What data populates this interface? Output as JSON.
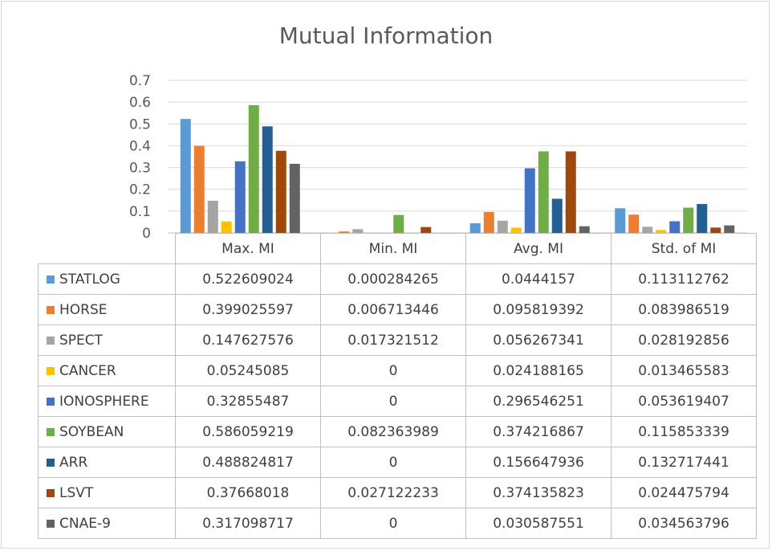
{
  "chart_data": {
    "type": "bar",
    "title": "Mutual Information",
    "categories": [
      "Max. MI",
      "Min. MI",
      "Avg. MI",
      "Std. of MI"
    ],
    "ylim": [
      0,
      0.7
    ],
    "yticks": [
      "0",
      "0.1",
      "0.2",
      "0.3",
      "0.4",
      "0.5",
      "0.6",
      "0.7"
    ],
    "grid": true,
    "legend_placement": "data table below plot",
    "series": [
      {
        "name": "STATLOG",
        "color": "#5b9bd5",
        "values": [
          0.522609024,
          0.000284265,
          0.0444157,
          0.113112762
        ],
        "labels": [
          "0.522609024",
          "0.000284265",
          "0.0444157",
          "0.113112762"
        ]
      },
      {
        "name": "HORSE",
        "color": "#ed7d31",
        "values": [
          0.399025597,
          0.006713446,
          0.095819392,
          0.083986519
        ],
        "labels": [
          "0.399025597",
          "0.006713446",
          "0.095819392",
          "0.083986519"
        ]
      },
      {
        "name": "SPECT",
        "color": "#a5a5a5",
        "values": [
          0.147627576,
          0.017321512,
          0.056267341,
          0.028192856
        ],
        "labels": [
          "0.147627576",
          "0.017321512",
          "0.056267341",
          "0.028192856"
        ]
      },
      {
        "name": "CANCER",
        "color": "#ffc000",
        "values": [
          0.05245085,
          0,
          0.024188165,
          0.013465583
        ],
        "labels": [
          "0.05245085",
          "0",
          "0.024188165",
          "0.013465583"
        ]
      },
      {
        "name": "IONOSPHERE",
        "color": "#4472c4",
        "values": [
          0.32855487,
          0,
          0.296546251,
          0.053619407
        ],
        "labels": [
          "0.32855487",
          "0",
          "0.296546251",
          "0.053619407"
        ]
      },
      {
        "name": "SOYBEAN",
        "color": "#70ad47",
        "values": [
          0.586059219,
          0.082363989,
          0.374216867,
          0.115853339
        ],
        "labels": [
          "0.586059219",
          "0.082363989",
          "0.374216867",
          "0.115853339"
        ]
      },
      {
        "name": "ARR",
        "color": "#255e91",
        "values": [
          0.488824817,
          0,
          0.156647936,
          0.132717441
        ],
        "labels": [
          "0.488824817",
          "0",
          "0.156647936",
          "0.132717441"
        ]
      },
      {
        "name": "LSVT",
        "color": "#9e480e",
        "values": [
          0.37668018,
          0.027122233,
          0.374135823,
          0.024475794
        ],
        "labels": [
          "0.37668018",
          "0.027122233",
          "0.374135823",
          "0.024475794"
        ]
      },
      {
        "name": "CNAE-9",
        "color": "#636363",
        "values": [
          0.317098717,
          0,
          0.030587551,
          0.034563796
        ],
        "labels": [
          "0.317098717",
          "0",
          "0.030587551",
          "0.034563796"
        ]
      }
    ]
  }
}
